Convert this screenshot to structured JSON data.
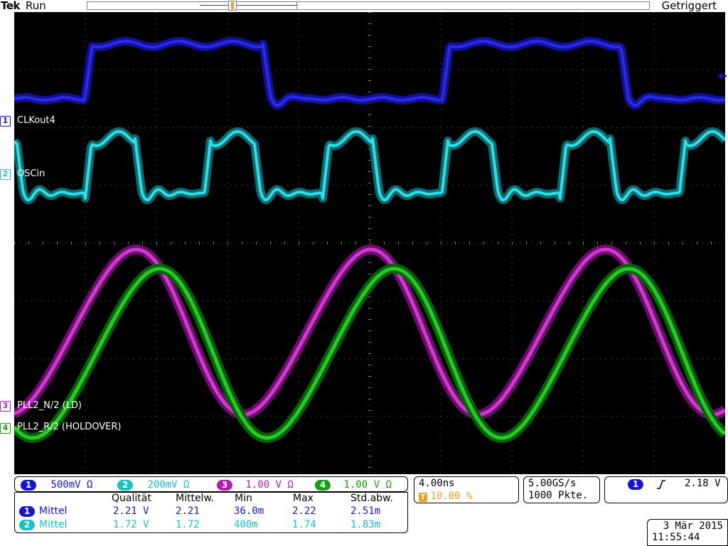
{
  "topbar": {
    "brand": "Tek",
    "run_state": "Run",
    "trigger_state": "Getriggert",
    "trigger_marker": "T"
  },
  "channels": [
    {
      "num": "1",
      "name": "CLKout4",
      "color": "#1515d6",
      "scale": "500mV",
      "unit": "Ω"
    },
    {
      "num": "2",
      "name": "OSCin",
      "color": "#19c0c8",
      "scale": "200mV",
      "unit": "Ω"
    },
    {
      "num": "3",
      "name": "PLL2_N/2 (LD)",
      "color": "#b01eb0",
      "scale": "1.00 V",
      "unit": "Ω"
    },
    {
      "num": "4",
      "name": "PLL2_R/2 (HOLDOVER)",
      "color": "#14a014",
      "scale": "1.00 V",
      "unit": "Ω"
    }
  ],
  "timebase": {
    "horizontal": "4.00ns",
    "trigger_pos": "10.00 %",
    "trigger_marker": "T"
  },
  "acquisition": {
    "sample_rate": "5.00GS/s",
    "record_length": "1000 Pkte."
  },
  "trigger": {
    "source": "1",
    "slope_icon": "rising-edge-icon",
    "level": "2.18 V"
  },
  "measurements": {
    "headers": [
      "Qualität",
      "Mittelw.",
      "Min",
      "Max",
      "Std.abw."
    ],
    "rows": [
      {
        "channel": "1",
        "type": "Mittel",
        "values": [
          "2.21 V",
          "2.21",
          "36.0m",
          "2.22",
          "2.51m"
        ]
      },
      {
        "channel": "2",
        "type": "Mittel",
        "values": [
          "1.72 V",
          "1.72",
          "400m",
          "1.74",
          "1.83m"
        ]
      }
    ]
  },
  "datetime": {
    "date": "3 Mär 2015",
    "time": "11:55:44"
  }
}
